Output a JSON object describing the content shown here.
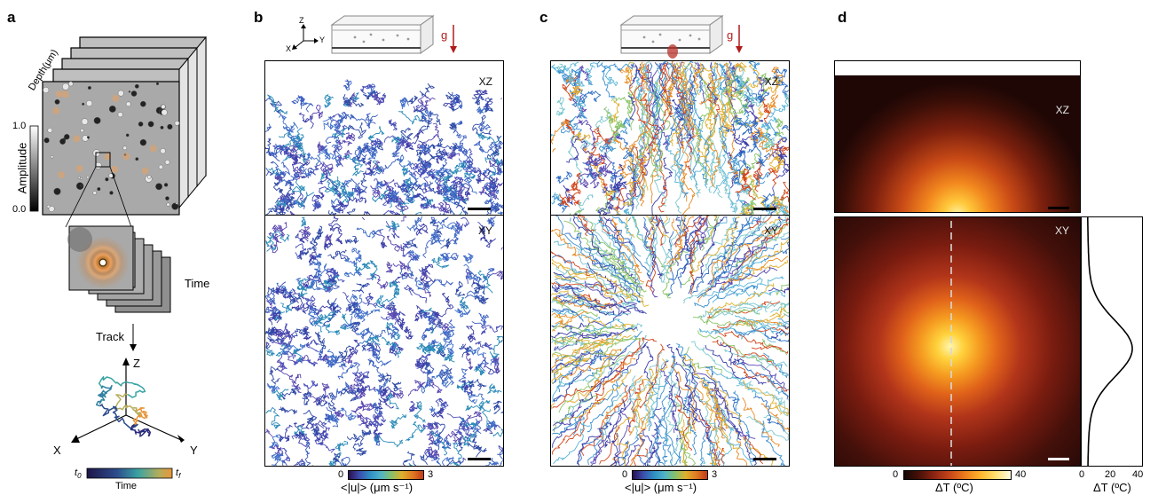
{
  "panel_a": {
    "label": "a",
    "depth_axis": "Depth(μm)",
    "amplitude_label": "Amplitude",
    "amp_max": "1.0",
    "amp_min": "0.0",
    "time_label": "Time",
    "track_label": "Track",
    "axes": {
      "z": "Z",
      "x": "X",
      "y": "Y"
    },
    "time_bar": {
      "start": "t",
      "start_sub": "0",
      "end": "t",
      "end_sub": "f",
      "title": "Time"
    }
  },
  "panel_b": {
    "label": "b",
    "coord": {
      "z": "Z",
      "x": "X",
      "y": "Y"
    },
    "gravity": "g",
    "view_top": "XZ",
    "view_bottom": "XY",
    "cbar_min": "0",
    "cbar_max": "3",
    "cbar_title": "<|u|> (μm s⁻¹)"
  },
  "panel_c": {
    "label": "c",
    "gravity": "g",
    "view_top": "XZ",
    "view_bottom": "XY",
    "cbar_min": "0",
    "cbar_max": "3",
    "cbar_title": "<|u|> (μm s⁻¹)"
  },
  "panel_d": {
    "label": "d",
    "view_top": "XZ",
    "view_bottom": "XY",
    "cbar_min": "0",
    "cbar_max": "40",
    "cbar_title": "ΔT (ºC)",
    "profile_ticks": [
      "0",
      "20",
      "40"
    ],
    "profile_title": "ΔT (ºC)",
    "profile_peak_fraction": 0.82
  },
  "colors": {
    "gravity": "#b01c1c",
    "track_low": "#2b2c7c",
    "track_high": "#e8963a"
  }
}
